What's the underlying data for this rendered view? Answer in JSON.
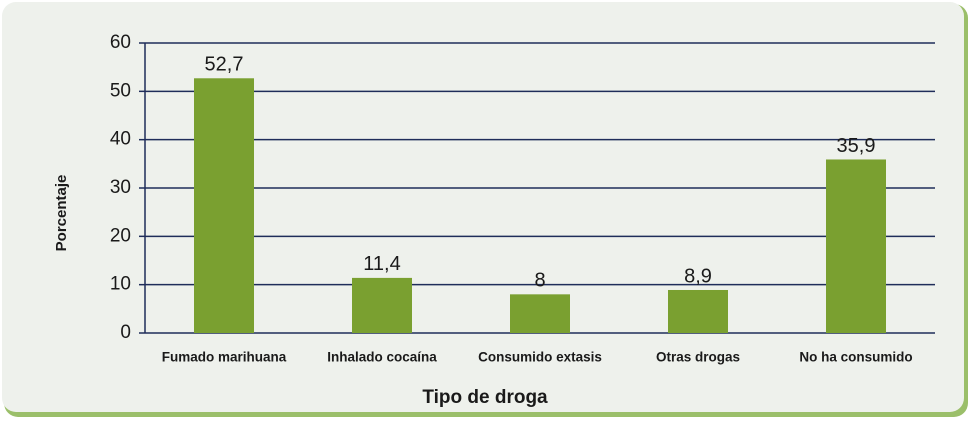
{
  "chart_data": {
    "type": "bar",
    "x_label": "Tipo de droga",
    "y_label": "Porcentaje",
    "categories": [
      "Fumado marihuana",
      "Inhalado cocaína",
      "Consumido extasis",
      "Otras drogas",
      "No ha consumido"
    ],
    "values": [
      52.7,
      11.4,
      8,
      8.9,
      35.9
    ],
    "value_labels": [
      "52,7",
      "11,4",
      "8",
      "8,9",
      "35,9"
    ],
    "color": "#7aa030",
    "ylim": [
      0,
      60
    ],
    "yticks": [
      0,
      10,
      20,
      30,
      40,
      50,
      60
    ],
    "grid": true
  }
}
